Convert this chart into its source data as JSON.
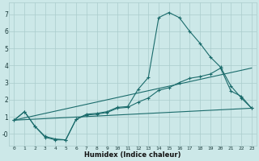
{
  "xlabel": "Humidex (Indice chaleur)",
  "background_color": "#cce8e8",
  "grid_color": "#aacccc",
  "line_color": "#1a6b6b",
  "xlim": [
    -0.5,
    23.5
  ],
  "ylim": [
    -0.7,
    7.7
  ],
  "xticks": [
    0,
    1,
    2,
    3,
    4,
    5,
    6,
    7,
    8,
    9,
    10,
    11,
    12,
    13,
    14,
    15,
    16,
    17,
    18,
    19,
    20,
    21,
    22,
    23
  ],
  "ytick_vals": [
    0,
    1,
    2,
    3,
    4,
    5,
    6,
    7
  ],
  "ytick_labels": [
    "-0",
    "1",
    "2",
    "3",
    "4",
    "5",
    "6",
    "7"
  ],
  "series": [
    {
      "x": [
        0,
        1,
        2,
        3,
        4,
        5,
        6,
        7,
        8,
        9,
        10,
        11,
        12,
        13,
        14,
        15,
        16,
        17,
        18,
        19,
        20,
        21,
        22,
        23
      ],
      "y": [
        0.8,
        1.3,
        0.45,
        -0.2,
        -0.35,
        -0.35,
        0.85,
        1.15,
        1.2,
        1.3,
        1.55,
        1.6,
        2.6,
        3.3,
        6.8,
        7.1,
        6.8,
        6.0,
        5.3,
        4.5,
        3.9,
        2.8,
        2.1,
        1.5
      ],
      "marker": true
    },
    {
      "x": [
        0,
        1,
        2,
        3,
        4,
        5,
        6,
        7,
        8,
        9,
        10,
        11,
        12,
        13,
        14,
        15,
        16,
        17,
        18,
        19,
        20,
        21,
        22,
        23
      ],
      "y": [
        0.8,
        1.3,
        0.45,
        -0.15,
        -0.3,
        -0.35,
        0.85,
        1.1,
        1.15,
        1.25,
        1.5,
        1.55,
        1.85,
        2.1,
        2.55,
        2.7,
        3.0,
        3.25,
        3.35,
        3.5,
        3.85,
        2.5,
        2.2,
        1.5
      ],
      "marker": true
    },
    {
      "x": [
        0,
        23
      ],
      "y": [
        0.8,
        1.5
      ],
      "marker": false
    },
    {
      "x": [
        0,
        23
      ],
      "y": [
        0.8,
        3.85
      ],
      "marker": false
    }
  ]
}
